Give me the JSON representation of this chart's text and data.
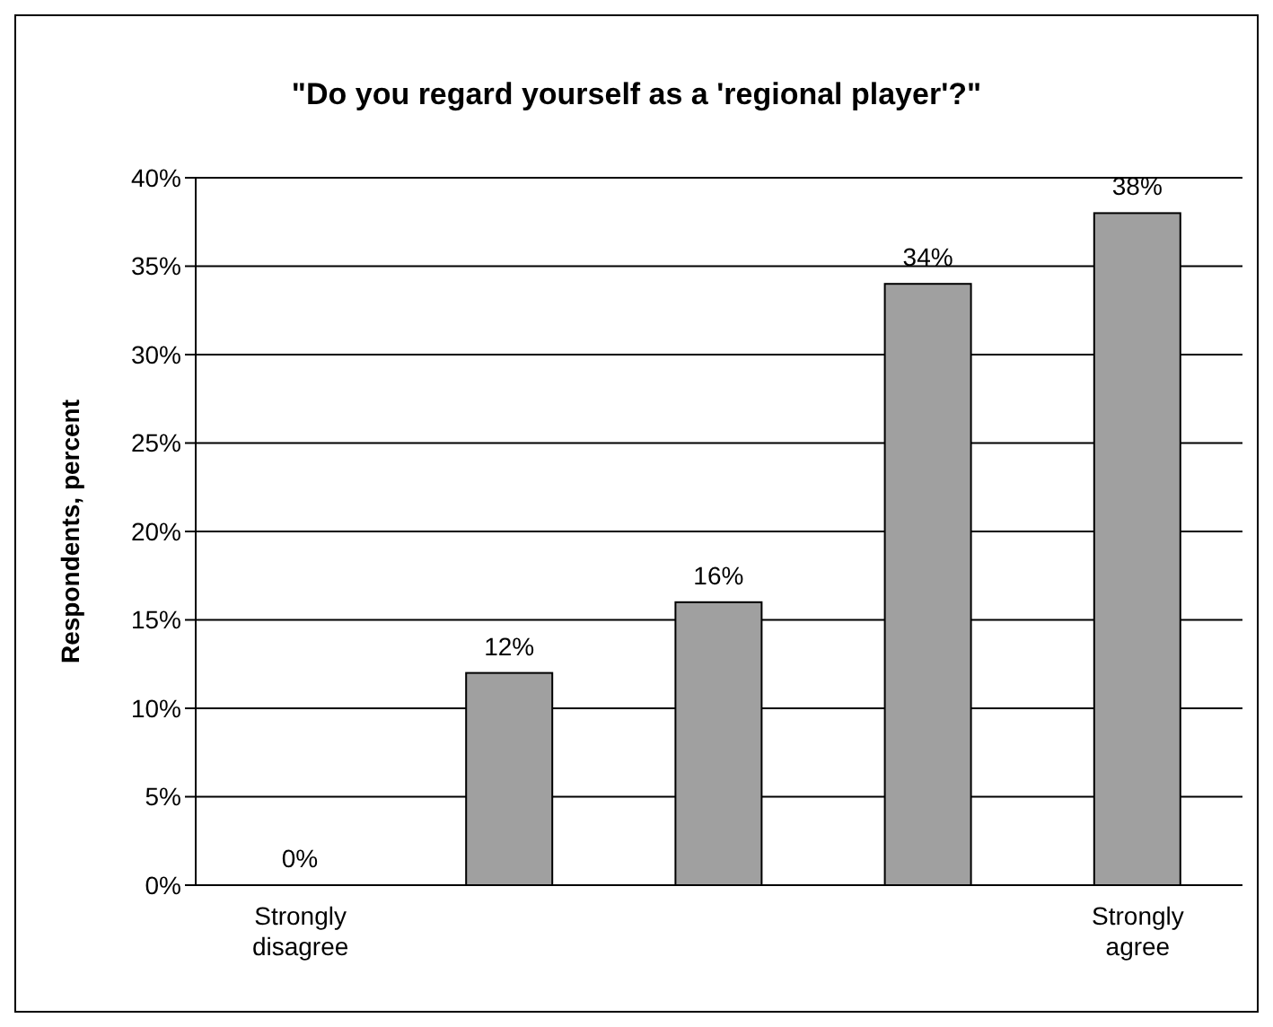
{
  "chart_data": {
    "type": "bar",
    "title": "\"Do you regard yourself as a 'regional player'?\"",
    "ylabel": "Respondents, percent",
    "categories": [
      "Strongly disagree",
      null,
      null,
      null,
      "Strongly agree"
    ],
    "values": [
      0,
      12,
      16,
      34,
      38
    ],
    "value_labels": [
      "0%",
      "12%",
      "16%",
      "34%",
      "38%"
    ],
    "color": "#a0a0a0",
    "ylim": [
      0,
      40
    ],
    "yticks": [
      {
        "value": 0,
        "label": "0%"
      },
      {
        "value": 5,
        "label": "5%"
      },
      {
        "value": 10,
        "label": "10%"
      },
      {
        "value": 15,
        "label": "15%"
      },
      {
        "value": 20,
        "label": "20%"
      },
      {
        "value": 25,
        "label": "25%"
      },
      {
        "value": 30,
        "label": "30%"
      },
      {
        "value": 35,
        "label": "35%"
      },
      {
        "value": 40,
        "label": "40%"
      }
    ],
    "grid": "y",
    "legend": false
  }
}
